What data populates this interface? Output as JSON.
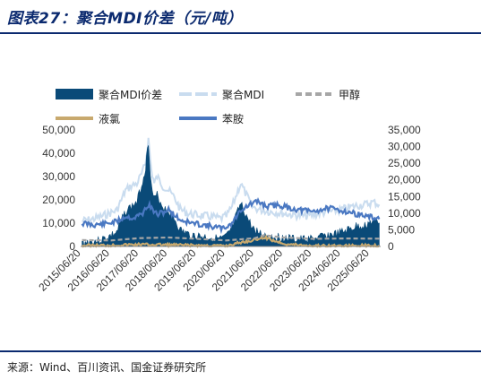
{
  "header": {
    "title": "图表27：聚合MDI价差（元/吨）"
  },
  "footer": {
    "source": "来源：Wind、百川资讯、国金证券研究所"
  },
  "colors": {
    "accent": "#0b2a6f",
    "spread": "#0a4a78",
    "mdi": "#c9dcef",
    "methanol": "#a6a6a6",
    "chlorine": "#c8a96e",
    "aniline": "#4a78c2"
  },
  "chart_data": {
    "type": "area",
    "title": "",
    "xlabel": "",
    "ylabel": "",
    "ylim_left": [
      0,
      50000
    ],
    "ylim_right": [
      0,
      35000
    ],
    "yticks_left": [
      "0",
      "10,000",
      "20,000",
      "30,000",
      "40,000",
      "50,000"
    ],
    "yticks_right": [
      "0",
      "5,000",
      "10,000",
      "15,000",
      "20,000",
      "25,000",
      "30,000",
      "35,000"
    ],
    "x_tick_labels": [
      "2015/06/20",
      "2016/06/20",
      "2017/06/20",
      "2018/06/20",
      "2019/06/20",
      "2020/06/20",
      "2021/06/20",
      "2022/06/20",
      "2023/06/20",
      "2024/06/20",
      "2025/06/20"
    ],
    "grid": false,
    "legend": {
      "position": "top"
    },
    "series": [
      {
        "name": "聚合MDI价差",
        "axis": "left",
        "style": "area",
        "x": [
          2015.5,
          2015.8,
          2016.1,
          2016.4,
          2016.7,
          2016.9,
          2017.0,
          2017.2,
          2017.4,
          2017.6,
          2017.7,
          2017.8,
          2017.9,
          2018.0,
          2018.1,
          2018.3,
          2018.5,
          2018.7,
          2018.9,
          2019.2,
          2019.5,
          2019.8,
          2020.1,
          2020.3,
          2020.5,
          2020.7,
          2020.9,
          2021.0,
          2021.2,
          2021.4,
          2021.6,
          2021.8,
          2022.0,
          2022.3,
          2022.6,
          2022.9,
          2023.2,
          2023.5,
          2023.8,
          2024.1,
          2024.4,
          2024.7,
          2025.0,
          2025.3,
          2025.6,
          2025.8
        ],
        "values": [
          1500,
          2000,
          2500,
          4000,
          6000,
          12000,
          15000,
          17000,
          19000,
          28000,
          34000,
          45000,
          26000,
          20000,
          22000,
          17000,
          15000,
          12000,
          7000,
          5000,
          4500,
          4000,
          3500,
          3000,
          4000,
          8000,
          15000,
          18000,
          13000,
          8000,
          6000,
          5000,
          4500,
          4000,
          3500,
          3000,
          3000,
          3200,
          4000,
          5000,
          5500,
          7000,
          8500,
          9000,
          11000,
          10000
        ]
      },
      {
        "name": "聚合MDI",
        "axis": "left",
        "style": "line",
        "x": [
          2015.5,
          2015.8,
          2016.1,
          2016.4,
          2016.7,
          2016.9,
          2017.0,
          2017.2,
          2017.4,
          2017.6,
          2017.7,
          2017.8,
          2017.9,
          2018.0,
          2018.1,
          2018.3,
          2018.5,
          2018.7,
          2018.9,
          2019.2,
          2019.5,
          2019.8,
          2020.1,
          2020.3,
          2020.5,
          2020.7,
          2020.9,
          2021.0,
          2021.2,
          2021.4,
          2021.6,
          2021.8,
          2022.0,
          2022.3,
          2022.6,
          2022.9,
          2023.2,
          2023.5,
          2023.8,
          2024.1,
          2024.4,
          2024.7,
          2025.0,
          2025.3,
          2025.6,
          2025.8
        ],
        "values": [
          11000,
          11500,
          12500,
          14000,
          15500,
          21000,
          24000,
          26000,
          27000,
          32000,
          36000,
          46000,
          33000,
          27000,
          30000,
          26000,
          24000,
          21000,
          16000,
          14000,
          13500,
          13000,
          12500,
          12000,
          13000,
          17000,
          24000,
          27000,
          22000,
          17000,
          16000,
          15500,
          15000,
          14500,
          14000,
          13500,
          13000,
          13500,
          14500,
          15000,
          15500,
          16500,
          17500,
          18000,
          19000,
          18000
        ]
      },
      {
        "name": "甲醇",
        "axis": "right",
        "style": "dashed",
        "x": [
          2015.5,
          2016.5,
          2017.5,
          2018.5,
          2019.5,
          2020.5,
          2021.5,
          2021.8,
          2022.5,
          2023.5,
          2024.5,
          2025.8
        ],
        "values": [
          1900,
          1800,
          2500,
          2700,
          2300,
          1800,
          2500,
          3400,
          2700,
          2300,
          2400,
          2350
        ]
      },
      {
        "name": "液氯",
        "axis": "right",
        "style": "line",
        "x": [
          2015.5,
          2016.5,
          2017.5,
          2018.5,
          2019.5,
          2020.5,
          2021.0,
          2021.5,
          2021.8,
          2022.2,
          2022.6,
          2023.5,
          2024.5,
          2025.8
        ],
        "values": [
          300,
          350,
          600,
          500,
          300,
          200,
          1200,
          2000,
          2800,
          1600,
          700,
          200,
          150,
          300
        ]
      },
      {
        "name": "苯胺",
        "axis": "right",
        "style": "line",
        "x": [
          2015.5,
          2015.9,
          2016.3,
          2016.7,
          2017.0,
          2017.3,
          2017.6,
          2017.8,
          2018.1,
          2018.5,
          2018.9,
          2019.3,
          2019.7,
          2020.1,
          2020.4,
          2020.7,
          2021.0,
          2021.3,
          2021.6,
          2021.9,
          2022.3,
          2022.7,
          2023.0,
          2023.5,
          2024.0,
          2024.5,
          2024.9,
          2025.3,
          2025.8
        ],
        "values": [
          7000,
          6500,
          6800,
          7500,
          9000,
          8500,
          10000,
          12500,
          9500,
          11000,
          8000,
          7000,
          6500,
          5800,
          5400,
          7000,
          11000,
          12500,
          13500,
          12000,
          12500,
          11500,
          11000,
          10500,
          11500,
          10800,
          10000,
          9200,
          8200
        ]
      }
    ]
  }
}
